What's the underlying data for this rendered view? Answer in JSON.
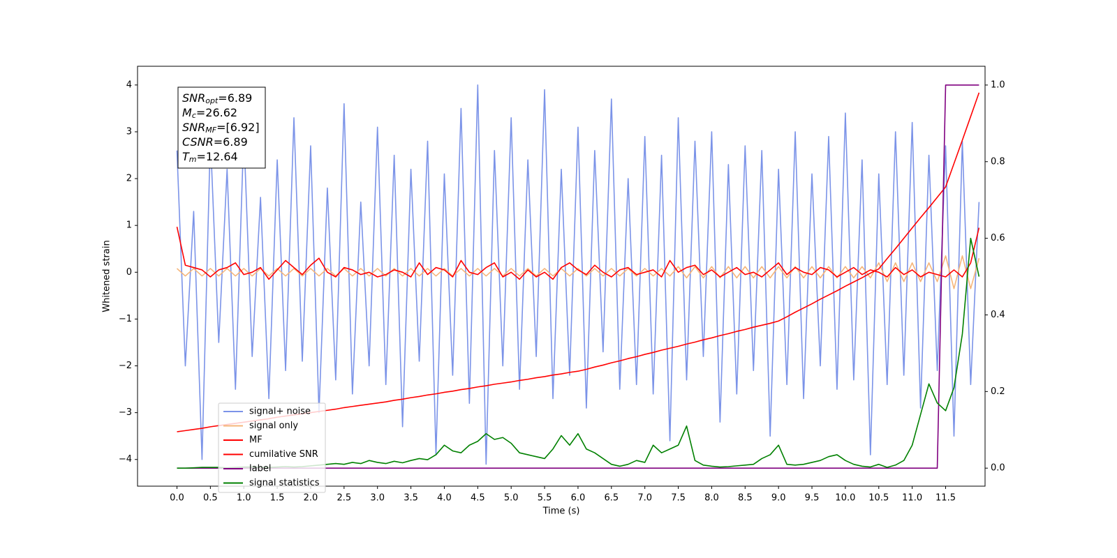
{
  "chart_data": {
    "type": "line",
    "xlabel": "Time (s)",
    "ylabel": "Whitened strain",
    "x": [
      0,
      0.125,
      0.25,
      0.375,
      0.5,
      0.625,
      0.75,
      0.875,
      1,
      1.125,
      1.25,
      1.375,
      1.5,
      1.625,
      1.75,
      1.875,
      2,
      2.125,
      2.25,
      2.375,
      2.5,
      2.625,
      2.75,
      2.875,
      3,
      3.125,
      3.25,
      3.375,
      3.5,
      3.625,
      3.75,
      3.875,
      4,
      4.125,
      4.25,
      4.375,
      4.5,
      4.625,
      4.75,
      4.875,
      5,
      5.125,
      5.25,
      5.375,
      5.5,
      5.625,
      5.75,
      5.875,
      6,
      6.125,
      6.25,
      6.375,
      6.5,
      6.625,
      6.75,
      6.875,
      7,
      7.125,
      7.25,
      7.375,
      7.5,
      7.625,
      7.75,
      7.875,
      8,
      8.125,
      8.25,
      8.375,
      8.5,
      8.625,
      8.75,
      8.875,
      9,
      9.125,
      9.25,
      9.375,
      9.5,
      9.625,
      9.75,
      9.875,
      10,
      10.125,
      10.25,
      10.375,
      10.5,
      10.625,
      10.75,
      10.875,
      11,
      11.125,
      11.25,
      11.375,
      11.5,
      11.625,
      11.75,
      11.875,
      12
    ],
    "series": [
      {
        "name": "signal+ noise",
        "color": "#7b93e8",
        "axis": "y",
        "values": [
          2.6,
          -2.0,
          1.3,
          -4.0,
          2.9,
          -1.5,
          2.2,
          -2.5,
          3.0,
          -1.8,
          1.6,
          -2.7,
          2.4,
          -2.1,
          3.3,
          -1.9,
          2.7,
          -3.0,
          1.8,
          -2.3,
          3.6,
          -2.6,
          1.5,
          -2.0,
          3.1,
          -2.4,
          2.5,
          -3.3,
          2.2,
          -1.9,
          2.8,
          -3.9,
          2.1,
          -2.2,
          3.5,
          -2.8,
          4.0,
          -4.1,
          2.6,
          -2.0,
          3.3,
          -2.5,
          2.4,
          -1.8,
          3.9,
          -2.7,
          2.2,
          -2.2,
          3.1,
          -2.9,
          2.6,
          -1.7,
          3.7,
          -2.5,
          2.0,
          -2.4,
          2.9,
          -2.6,
          2.5,
          -3.6,
          3.3,
          -2.3,
          2.8,
          -1.8,
          3.0,
          -3.2,
          2.3,
          -2.6,
          2.7,
          -2.1,
          2.6,
          -3.5,
          2.2,
          -2.4,
          3.0,
          -2.7,
          2.1,
          -2.0,
          2.9,
          -2.5,
          3.4,
          -2.3,
          2.4,
          -3.9,
          2.1,
          -2.4,
          3.0,
          -2.2,
          3.2,
          -2.9,
          2.5,
          -2.1,
          2.7,
          -3.5,
          2.8,
          -2.4,
          1.5
        ]
      },
      {
        "name": "signal only",
        "color": "#f5b57a",
        "axis": "y",
        "values": [
          0.08,
          -0.08,
          0.08,
          -0.08,
          0.08,
          -0.08,
          0.08,
          -0.08,
          0.08,
          -0.08,
          0.08,
          -0.08,
          0.08,
          -0.08,
          0.08,
          -0.08,
          0.08,
          -0.08,
          0.08,
          -0.08,
          0.08,
          -0.08,
          0.08,
          -0.08,
          0.08,
          -0.08,
          0.08,
          -0.08,
          0.08,
          -0.08,
          0.08,
          -0.08,
          0.08,
          -0.08,
          0.08,
          -0.08,
          0.08,
          -0.08,
          0.08,
          -0.08,
          0.08,
          -0.08,
          0.08,
          -0.08,
          0.08,
          -0.08,
          0.08,
          -0.08,
          0.08,
          -0.08,
          0.08,
          -0.08,
          0.08,
          -0.08,
          0.08,
          -0.08,
          0.08,
          -0.08,
          0.08,
          -0.08,
          0.12,
          -0.12,
          0.12,
          -0.12,
          0.12,
          -0.12,
          0.12,
          -0.12,
          0.12,
          -0.12,
          0.12,
          -0.12,
          0.12,
          -0.12,
          0.12,
          -0.12,
          0.12,
          -0.12,
          0.12,
          -0.12,
          0.12,
          -0.12,
          0.12,
          -0.12,
          0.2,
          -0.2,
          0.2,
          -0.2,
          0.2,
          -0.2,
          0.2,
          -0.2,
          0.35,
          -0.35,
          0.35,
          -0.35,
          0.3
        ]
      },
      {
        "name": "MF",
        "color": "#ff0000",
        "axis": "y",
        "values": [
          0.97,
          0.15,
          0.1,
          0.05,
          -0.1,
          0.05,
          0.1,
          0.2,
          -0.05,
          0.0,
          0.1,
          -0.15,
          0.05,
          0.25,
          0.1,
          -0.05,
          0.15,
          0.3,
          0.0,
          -0.1,
          0.1,
          0.05,
          -0.05,
          0.0,
          -0.1,
          -0.05,
          0.05,
          0.0,
          -0.1,
          0.2,
          -0.05,
          0.1,
          0.05,
          -0.1,
          0.25,
          0.0,
          -0.05,
          0.1,
          0.2,
          -0.1,
          0.0,
          -0.15,
          0.05,
          -0.1,
          0.0,
          -0.15,
          0.1,
          0.2,
          0.05,
          -0.05,
          0.15,
          0.0,
          -0.1,
          0.05,
          0.1,
          -0.05,
          0.0,
          0.05,
          -0.1,
          0.25,
          0.0,
          0.1,
          0.15,
          -0.05,
          0.05,
          -0.1,
          0.0,
          0.1,
          -0.05,
          0.0,
          -0.1,
          0.05,
          0.2,
          -0.05,
          0.1,
          0.0,
          -0.05,
          0.1,
          0.05,
          -0.1,
          0.0,
          0.1,
          -0.05,
          0.05,
          0.0,
          -0.1,
          0.1,
          -0.05,
          0.05,
          -0.1,
          0.0,
          -0.05,
          -0.1,
          0.05,
          -0.1,
          0.2,
          0.95
        ]
      },
      {
        "name": "cumilative SNR",
        "color": "#ff0000",
        "axis": "y2",
        "values": [
          0.095,
          0.098,
          0.101,
          0.104,
          0.108,
          0.111,
          0.114,
          0.117,
          0.12,
          0.123,
          0.126,
          0.129,
          0.133,
          0.136,
          0.139,
          0.142,
          0.145,
          0.148,
          0.151,
          0.154,
          0.158,
          0.161,
          0.164,
          0.167,
          0.17,
          0.173,
          0.177,
          0.18,
          0.184,
          0.187,
          0.191,
          0.194,
          0.198,
          0.201,
          0.205,
          0.208,
          0.212,
          0.215,
          0.219,
          0.222,
          0.225,
          0.229,
          0.232,
          0.236,
          0.239,
          0.243,
          0.246,
          0.25,
          0.253,
          0.258,
          0.264,
          0.269,
          0.275,
          0.28,
          0.286,
          0.291,
          0.297,
          0.302,
          0.308,
          0.313,
          0.318,
          0.324,
          0.329,
          0.335,
          0.34,
          0.346,
          0.351,
          0.357,
          0.362,
          0.368,
          0.373,
          0.378,
          0.384,
          0.395,
          0.407,
          0.418,
          0.429,
          0.441,
          0.452,
          0.463,
          0.475,
          0.486,
          0.497,
          0.509,
          0.52,
          0.547,
          0.573,
          0.6,
          0.627,
          0.654,
          0.68,
          0.707,
          0.734,
          0.795,
          0.856,
          0.918,
          0.98
        ]
      },
      {
        "name": "label",
        "color": "#800080",
        "axis": "y2",
        "values": [
          0,
          0,
          0,
          0,
          0,
          0,
          0,
          0,
          0,
          0,
          0,
          0,
          0,
          0,
          0,
          0,
          0,
          0,
          0,
          0,
          0,
          0,
          0,
          0,
          0,
          0,
          0,
          0,
          0,
          0,
          0,
          0,
          0,
          0,
          0,
          0,
          0,
          0,
          0,
          0,
          0,
          0,
          0,
          0,
          0,
          0,
          0,
          0,
          0,
          0,
          0,
          0,
          0,
          0,
          0,
          0,
          0,
          0,
          0,
          0,
          0,
          0,
          0,
          0,
          0,
          0,
          0,
          0,
          0,
          0,
          0,
          0,
          0,
          0,
          0,
          0,
          0,
          0,
          0,
          0,
          0,
          0,
          0,
          0,
          0,
          0,
          0,
          0,
          0,
          0,
          0,
          0,
          1,
          1,
          1,
          1,
          1
        ]
      },
      {
        "name": "signal statistics",
        "color": "#008000",
        "axis": "y2",
        "values": [
          0,
          0,
          0.001,
          0.002,
          0.002,
          0.002,
          0.001,
          0.002,
          0.003,
          0.003,
          0.002,
          0.002,
          0.003,
          0.004,
          0.003,
          0.004,
          0.006,
          0.008,
          0.01,
          0.012,
          0.01,
          0.015,
          0.012,
          0.02,
          0.015,
          0.012,
          0.018,
          0.014,
          0.02,
          0.025,
          0.022,
          0.035,
          0.06,
          0.045,
          0.04,
          0.06,
          0.07,
          0.09,
          0.075,
          0.08,
          0.065,
          0.04,
          0.035,
          0.03,
          0.025,
          0.05,
          0.085,
          0.06,
          0.09,
          0.05,
          0.04,
          0.025,
          0.01,
          0.005,
          0.01,
          0.02,
          0.015,
          0.06,
          0.04,
          0.05,
          0.06,
          0.11,
          0.02,
          0.008,
          0.005,
          0.003,
          0.004,
          0.006,
          0.008,
          0.01,
          0.025,
          0.035,
          0.06,
          0.01,
          0.008,
          0.01,
          0.015,
          0.02,
          0.03,
          0.035,
          0.02,
          0.01,
          0.005,
          0.003,
          0.01,
          0.002,
          0.008,
          0.02,
          0.06,
          0.14,
          0.22,
          0.17,
          0.15,
          0.21,
          0.35,
          0.6,
          0.5
        ]
      }
    ],
    "xlim": [
      -0.59,
      12.09
    ],
    "xticks": [
      {
        "value": 0,
        "label": "0.0"
      },
      0.5,
      {
        "value": 1,
        "label": "1.0"
      },
      1.5,
      {
        "value": 2,
        "label": "2.0"
      },
      2.5,
      {
        "value": 3,
        "label": "3.0"
      },
      3.5,
      {
        "value": 4,
        "label": "4.0"
      },
      4.5,
      {
        "value": 5,
        "label": "5.0"
      },
      5.5,
      {
        "value": 6,
        "label": "6.0"
      },
      6.5,
      {
        "value": 7,
        "label": "7.0"
      },
      7.5,
      {
        "value": 8,
        "label": "8.0"
      },
      8.5,
      {
        "value": 9,
        "label": "9.0"
      },
      9.5,
      {
        "value": 10,
        "label": "10.0"
      },
      10.5,
      {
        "value": 11,
        "label": "11.0"
      },
      11.5
    ],
    "ylim": [
      -4.57,
      4.4
    ],
    "yticks": [
      {
        "value": -4,
        "label": "−4"
      },
      {
        "value": -3,
        "label": "−3"
      },
      {
        "value": -2,
        "label": "−2"
      },
      {
        "value": -1,
        "label": "−1"
      },
      0,
      1,
      2,
      3,
      4
    ],
    "y2lim": [
      -0.047,
      1.049
    ],
    "y2ticks": [
      {
        "value": 0,
        "label": "0.0"
      },
      0.2,
      0.4,
      0.6,
      0.8,
      {
        "value": 1,
        "label": "1.0"
      }
    ],
    "legend": "lower left",
    "annotation": [
      {
        "name": "SNR",
        "sub": "opt",
        "text": "=6.89"
      },
      {
        "name": "M",
        "sub": "c",
        "text": "=26.62"
      },
      {
        "name": "SNR",
        "sub": "MF",
        "text": "=[6.92]"
      },
      {
        "name": "CSNR",
        "text": "=6.89"
      },
      {
        "name": "T",
        "sub": "m",
        "text": "=12.64"
      }
    ]
  }
}
